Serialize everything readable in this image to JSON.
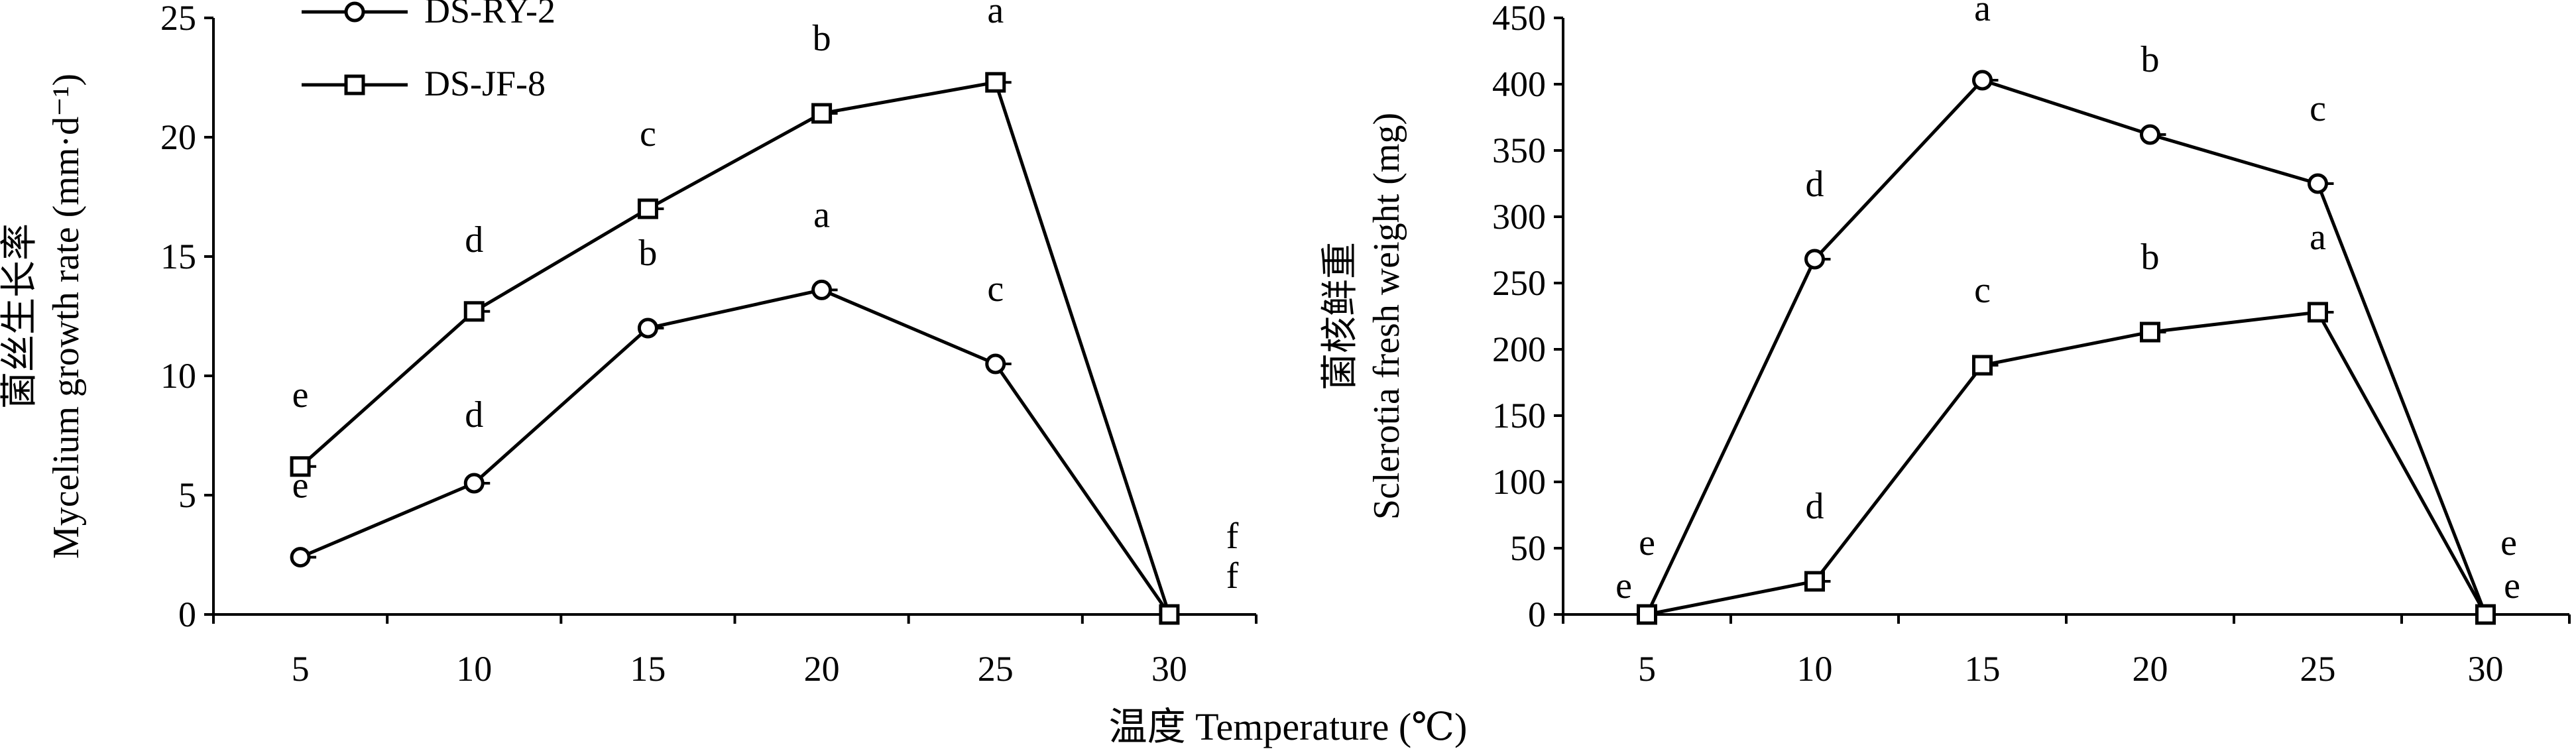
{
  "shared_xlabel": "温度 Temperature (℃)",
  "legend": [
    "DS-RY-2",
    "DS-JF-8"
  ],
  "chart_data": [
    {
      "type": "line",
      "ylabel_cn": "菌丝生长率",
      "ylabel_en": "Mycelium growth rate (mm·d⁻¹)",
      "x": [
        5,
        10,
        15,
        20,
        25,
        30
      ],
      "xlim": [
        2.5,
        32.5
      ],
      "ylim": [
        0,
        25
      ],
      "xticks": [
        5,
        10,
        15,
        20,
        25,
        30
      ],
      "yticks": [
        0,
        5,
        10,
        15,
        20,
        25
      ],
      "grid": false,
      "legend_position": "top-left",
      "series": [
        {
          "name": "DS-RY-2",
          "marker": "circle",
          "values": [
            2.4,
            5.5,
            12.0,
            13.6,
            10.5,
            0
          ],
          "letters": [
            "e",
            "d",
            "b",
            "a",
            "c",
            "f"
          ]
        },
        {
          "name": "DS-JF-8",
          "marker": "square",
          "values": [
            6.2,
            12.7,
            17.0,
            21.0,
            22.3,
            0
          ],
          "letters": [
            "e",
            "d",
            "c",
            "b",
            "a",
            "f"
          ]
        }
      ]
    },
    {
      "type": "line",
      "ylabel_cn": "菌核鲜重",
      "ylabel_en": "Sclerotia fresh weight (mg)",
      "x": [
        5,
        10,
        15,
        20,
        25,
        30
      ],
      "xlim": [
        2.5,
        32.5
      ],
      "ylim": [
        0,
        450
      ],
      "xticks": [
        5,
        10,
        15,
        20,
        25,
        30
      ],
      "yticks": [
        0,
        50,
        100,
        150,
        200,
        250,
        300,
        350,
        400,
        450
      ],
      "grid": false,
      "series": [
        {
          "name": "DS-RY-2",
          "marker": "circle",
          "values": [
            0,
            268,
            403,
            362,
            325,
            0
          ],
          "letters": [
            "e",
            "d",
            "a",
            "b",
            "c",
            "e"
          ]
        },
        {
          "name": "DS-JF-8",
          "marker": "square",
          "values": [
            0,
            25,
            188,
            213,
            228,
            0
          ],
          "letters": [
            "e",
            "d",
            "c",
            "b",
            "a",
            "e"
          ]
        }
      ]
    }
  ]
}
